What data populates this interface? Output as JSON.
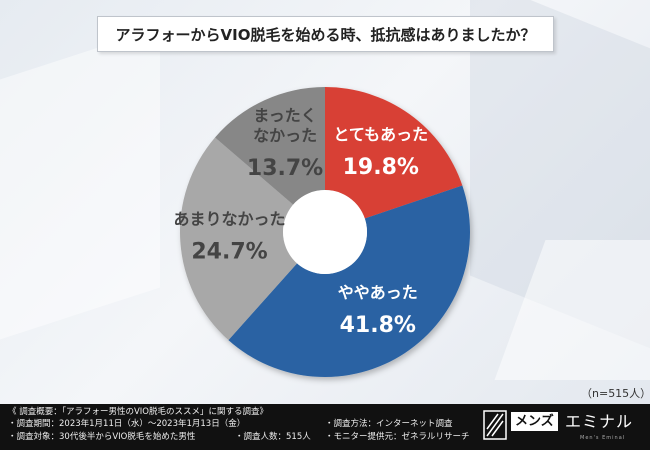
{
  "title": "アラフォーからVIO脱毛を始める時、抵抗感はありましたか？",
  "chart_data": {
    "type": "pie",
    "donut": true,
    "title": "アラフォーからVIO脱毛を始める時、抵抗感はありましたか？",
    "slices": [
      {
        "label_lines": [
          "とてもあった"
        ],
        "value": 19.8,
        "percent_label": "19.8%",
        "color": "#d84136",
        "label_color": "#ffffff"
      },
      {
        "label_lines": [
          "ややあった"
        ],
        "value": 41.8,
        "percent_label": "41.8%",
        "color": "#2962a3",
        "label_color": "#ffffff"
      },
      {
        "label_lines": [
          "あまりなかった"
        ],
        "value": 24.7,
        "percent_label": "24.7%",
        "color": "#a8a8a8",
        "label_color": "#444444"
      },
      {
        "label_lines": [
          "まったく",
          "なかった"
        ],
        "value": 13.7,
        "percent_label": "13.7%",
        "color": "#878787",
        "label_color": "#444444"
      }
    ]
  },
  "sample_note": "（n=515人）",
  "footer": {
    "survey_overview": "《 調査概要：「アラフォー男性のVIO脱毛のススメ」に関する調査》",
    "survey_period": "・調査期間：2023年1月11日（水）〜2023年1月13日（金）",
    "survey_target": "・調査対象：30代後半からVIO脱毛を始めた男性",
    "survey_count": "・調査人数：515人",
    "survey_method": "・調査方法：インターネット調査",
    "monitor_provider": "・モニター提供元：ゼネラルリサーチ",
    "logo_box": "メンズ",
    "logo_text": "エミナル",
    "logo_sub": "Men's Eminal"
  }
}
